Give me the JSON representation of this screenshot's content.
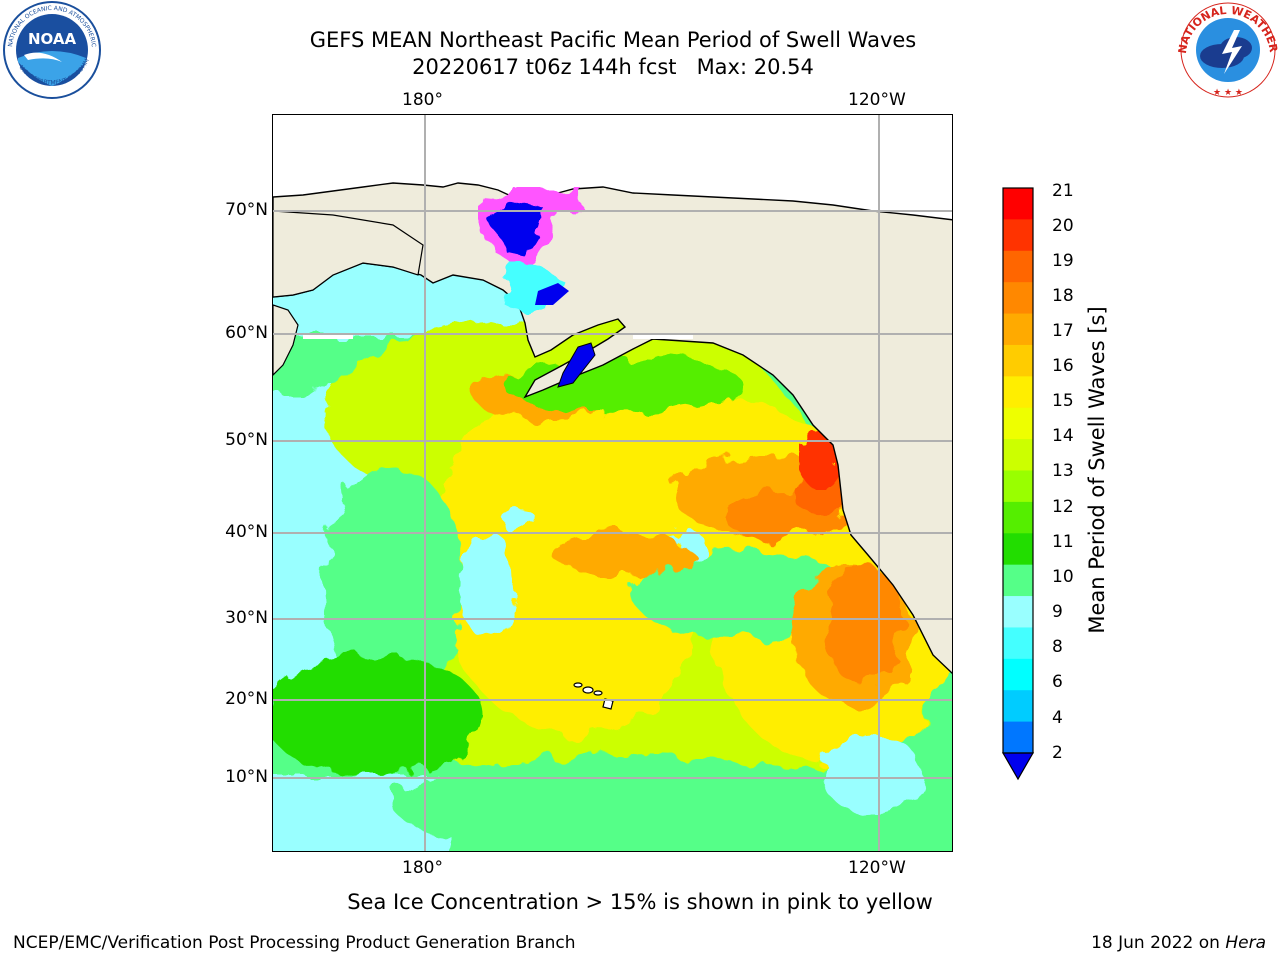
{
  "title": {
    "line1": "GEFS MEAN Northeast Pacific Mean Period of Swell Waves",
    "line2": "20220617 t06z 144h fcst   Max: 20.54"
  },
  "map": {
    "top_lon_labels": [
      "180°",
      "120°W"
    ],
    "bottom_lon_labels": [
      "180°",
      "120°W"
    ],
    "lat_labels": [
      "70°N",
      "60°N",
      "50°N",
      "40°N",
      "30°N",
      "20°N",
      "10°N"
    ],
    "land_color": "#efecdc",
    "grid_color": "#b0b0b0"
  },
  "colorbar": {
    "label": "Mean Period of Swell Waves [s]",
    "ticks": [
      "21",
      "20",
      "19",
      "18",
      "17",
      "16",
      "15",
      "14",
      "13",
      "12",
      "11",
      "10",
      "9",
      "8",
      "6",
      "4",
      "2"
    ],
    "colors": [
      "#ff0000",
      "#ff3300",
      "#ff6600",
      "#ff8800",
      "#ffaa00",
      "#ffcc00",
      "#ffee00",
      "#eeff00",
      "#ccff00",
      "#99ff00",
      "#55ee00",
      "#22dd00",
      "#55ff88",
      "#99ffff",
      "#44ffff",
      "#00ffff",
      "#00ccff",
      "#0077ff",
      "#0000ee"
    ]
  },
  "note": "Sea Ice Concentration > 15% is shown in pink to yellow",
  "footer": {
    "left": "NCEP/EMC/Verification Post Processing Product Generation Branch",
    "date": "18 Jun 2022 on ",
    "machine": "Hera"
  },
  "logos": {
    "left": "noaa-logo",
    "right": "national-weather-service-logo"
  }
}
